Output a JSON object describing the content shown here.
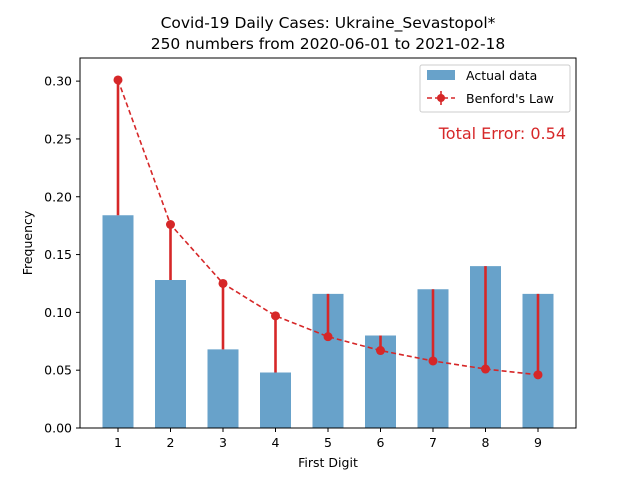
{
  "chart_data": {
    "type": "bar",
    "title": "Covid-19 Daily Cases: Ukraine_Sevastopol*",
    "subtitle": "250 numbers from 2020-06-01 to 2021-02-18",
    "xlabel": "First Digit",
    "ylabel": "Frequency",
    "categories": [
      "1",
      "2",
      "3",
      "4",
      "5",
      "6",
      "7",
      "8",
      "9"
    ],
    "ylim": [
      0,
      0.32
    ],
    "yticks": [
      "0.00",
      "0.05",
      "0.10",
      "0.15",
      "0.20",
      "0.25",
      "0.30"
    ],
    "grid": false,
    "legend_position": "top-right",
    "series": [
      {
        "name": "Actual data",
        "kind": "bar",
        "color": "#5b9ac6",
        "values": [
          0.184,
          0.128,
          0.068,
          0.048,
          0.116,
          0.08,
          0.12,
          0.14,
          0.116
        ]
      },
      {
        "name": "Benford's Law",
        "kind": "line-with-error",
        "color": "#d62728",
        "values": [
          0.301,
          0.176,
          0.125,
          0.097,
          0.079,
          0.067,
          0.058,
          0.051,
          0.046
        ]
      }
    ],
    "annotation": {
      "text": "Total Error: 0.54",
      "color": "#d62728"
    }
  }
}
